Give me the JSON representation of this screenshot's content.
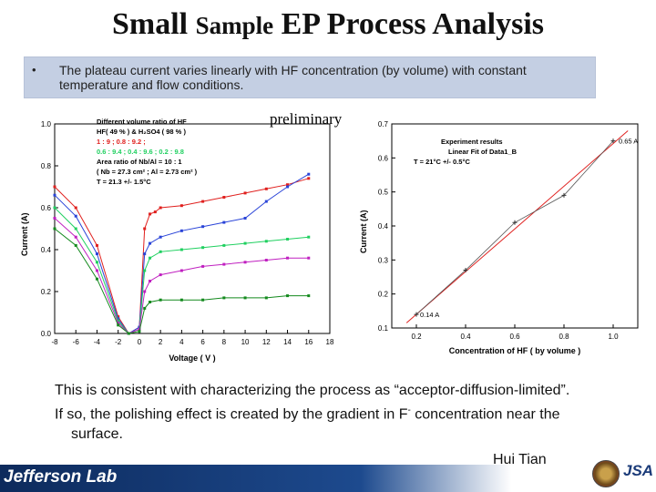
{
  "title": {
    "part1": "Small ",
    "part2": "Sample",
    "part3": " EP Process Analysis"
  },
  "bullet": {
    "marker": "•",
    "text": "The plateau current varies linearly with HF concentration (by volume) with constant temperature and flow conditions."
  },
  "preliminary": "preliminary",
  "body": {
    "line1": "This is consistent with characterizing the process as “acceptor-diffusion-limited”.",
    "line2a": "If so, the polishing effect is created by the gradient in F",
    "line2sup": "-",
    "line2b": " concentration near the",
    "line3": "surface."
  },
  "author": "Hui Tian",
  "footer": {
    "logo_text": "Jefferson Lab",
    "partner_text": "JSA"
  },
  "colors": {
    "red": "#e0201e",
    "blue": "#2a44d8",
    "magenta": "#c020c0",
    "green_light": "#20d060",
    "green_dark": "#148a1e",
    "footer_blue": "#0d2a5c"
  },
  "chart_data": [
    {
      "type": "line",
      "xlabel": "Voltage ( V )",
      "ylabel": "Current (A)",
      "xlim": [
        -8,
        18
      ],
      "ylim": [
        0,
        1.0
      ],
      "x_ticks": [
        "-8",
        "-6",
        "-4",
        "-2",
        "0",
        "2",
        "4",
        "6",
        "8",
        "10",
        "12",
        "14",
        "16",
        "18"
      ],
      "y_ticks": [
        "0.0",
        "0.2",
        "0.4",
        "0.6",
        "0.8",
        "1.0"
      ],
      "annotations": [
        "Different volume ratio of HF",
        "HF( 49 % ) & H₂SO4 ( 98 % )",
        "1 : 9 ; 0.8 : 9.2 ;",
        "0.6 : 9.4 ; 0.4 : 9.6 ; 0.2 : 9.8",
        "Area ratio of Nb/Al = 10 : 1",
        "( Nb = 27.3 cm² ; Al = 2.73 cm² )",
        "T = 21.3 +/- 1.5°C"
      ],
      "series": [
        {
          "name": "1 : 9",
          "color": "#e0201e",
          "x": [
            -8,
            -6,
            -4,
            -2,
            -1,
            0,
            0.5,
            1,
            1.5,
            2,
            4,
            6,
            8,
            10,
            12,
            14,
            16
          ],
          "y": [
            0.7,
            0.6,
            0.42,
            0.08,
            0.0,
            0.03,
            0.5,
            0.57,
            0.58,
            0.6,
            0.61,
            0.63,
            0.65,
            0.67,
            0.69,
            0.71,
            0.74
          ]
        },
        {
          "name": "0.8 : 9.2",
          "color": "#2a44d8",
          "x": [
            -8,
            -6,
            -4,
            -2,
            -1,
            0,
            0.5,
            1,
            2,
            4,
            6,
            8,
            10,
            12,
            14,
            16
          ],
          "y": [
            0.66,
            0.56,
            0.38,
            0.07,
            0.0,
            0.03,
            0.38,
            0.43,
            0.46,
            0.49,
            0.51,
            0.53,
            0.55,
            0.63,
            0.7,
            0.76
          ]
        },
        {
          "name": "0.6 : 9.4",
          "color": "#20d060",
          "x": [
            -8,
            -6,
            -4,
            -2,
            -1,
            0,
            0.5,
            1,
            2,
            4,
            6,
            8,
            10,
            12,
            14,
            16
          ],
          "y": [
            0.6,
            0.5,
            0.34,
            0.06,
            0.0,
            0.02,
            0.3,
            0.36,
            0.39,
            0.4,
            0.41,
            0.42,
            0.43,
            0.44,
            0.45,
            0.46
          ]
        },
        {
          "name": "0.4 : 9.6",
          "color": "#c020c0",
          "x": [
            -8,
            -6,
            -4,
            -2,
            -1,
            0,
            0.5,
            1,
            2,
            4,
            6,
            8,
            10,
            12,
            14,
            16
          ],
          "y": [
            0.55,
            0.46,
            0.3,
            0.05,
            0.0,
            0.02,
            0.2,
            0.25,
            0.28,
            0.3,
            0.32,
            0.33,
            0.34,
            0.35,
            0.36,
            0.36
          ]
        },
        {
          "name": "0.2 : 9.8",
          "color": "#148a1e",
          "x": [
            -8,
            -6,
            -4,
            -2,
            -1,
            0,
            0.5,
            1,
            2,
            4,
            6,
            8,
            10,
            12,
            14,
            16
          ],
          "y": [
            0.5,
            0.42,
            0.26,
            0.04,
            0.0,
            0.01,
            0.12,
            0.15,
            0.16,
            0.16,
            0.16,
            0.17,
            0.17,
            0.17,
            0.18,
            0.18
          ]
        }
      ]
    },
    {
      "type": "scatter",
      "xlabel": "Concentration of HF ( by volume )",
      "ylabel": "Current (A)",
      "xlim": [
        0.1,
        1.1
      ],
      "ylim": [
        0.1,
        0.7
      ],
      "x_ticks": [
        "0.2",
        "0.4",
        "0.6",
        "0.8",
        "1.0"
      ],
      "y_ticks": [
        "0.1",
        "0.2",
        "0.3",
        "0.4",
        "0.5",
        "0.6",
        "0.7"
      ],
      "legend": [
        "Experiment results",
        "Linear Fit of Data1_B"
      ],
      "annotations": [
        "T = 21°C +/- 0.5°C",
        "0.65 A",
        "0.14 A"
      ],
      "series": [
        {
          "name": "Experiment results",
          "color": "#555555",
          "x": [
            0.2,
            0.4,
            0.6,
            0.8,
            1.0
          ],
          "y": [
            0.14,
            0.27,
            0.41,
            0.49,
            0.65
          ]
        },
        {
          "name": "Linear Fit of Data1_B",
          "color": "#e0201e",
          "x": [
            0.16,
            1.06
          ],
          "y": [
            0.115,
            0.68
          ]
        }
      ]
    }
  ]
}
